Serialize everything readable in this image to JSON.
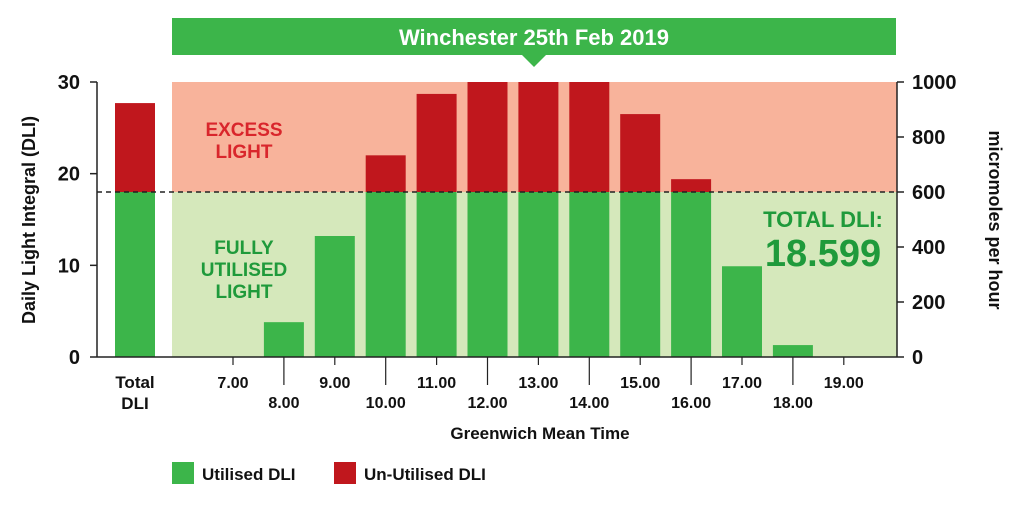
{
  "chart_data": {
    "type": "bar",
    "title": "Winchester 25th Feb 2019",
    "xlabel": "Greenwich Mean Time",
    "ylabel": "Daily Light Integral (DLI)",
    "y2label": "micromoles per hour",
    "ylim": [
      0,
      30
    ],
    "y2lim": [
      0,
      1000
    ],
    "yticks": [
      "0",
      "10",
      "20",
      "30"
    ],
    "y2ticks": [
      "0",
      "200",
      "400",
      "600",
      "800",
      "1000"
    ],
    "threshold": 18,
    "total_bar": {
      "label_line1": "Total",
      "label_line2": "DLI",
      "utilised": 18,
      "unutilised": 9.7
    },
    "categories": [
      "7.00",
      "8.00",
      "9.00",
      "10.00",
      "11.00",
      "12.00",
      "13.00",
      "14.00",
      "15.00",
      "16.00",
      "17.00",
      "18.00",
      "19.00"
    ],
    "series": [
      {
        "name": "Utilised DLI",
        "color": "#3cb54a",
        "values": [
          0,
          3.8,
          13.2,
          18,
          18,
          18,
          18,
          18,
          18,
          18,
          9.9,
          1.3,
          0
        ]
      },
      {
        "name": "Un-Utilised DLI",
        "color": "#c0171d",
        "values": [
          0,
          0,
          0,
          4,
          10.7,
          12,
          12,
          12,
          8.5,
          1.4,
          0,
          0,
          0
        ]
      }
    ],
    "zones": {
      "excess_line1": "EXCESS",
      "excess_line2": "LIGHT",
      "fully_line1": "FULLY",
      "fully_line2": "UTILISED",
      "fully_line3": "LIGHT"
    },
    "total_note": {
      "label": "TOTAL DLI:",
      "value": "18.599"
    },
    "legend": {
      "placement": "bottom-left"
    },
    "colors": {
      "banner": "#3cb54a",
      "excess_zone": "#f8b39b",
      "utilised_zone": "#d5e8bb",
      "excess_text": "#d9262c",
      "utilised_text": "#1f9a3b"
    }
  }
}
